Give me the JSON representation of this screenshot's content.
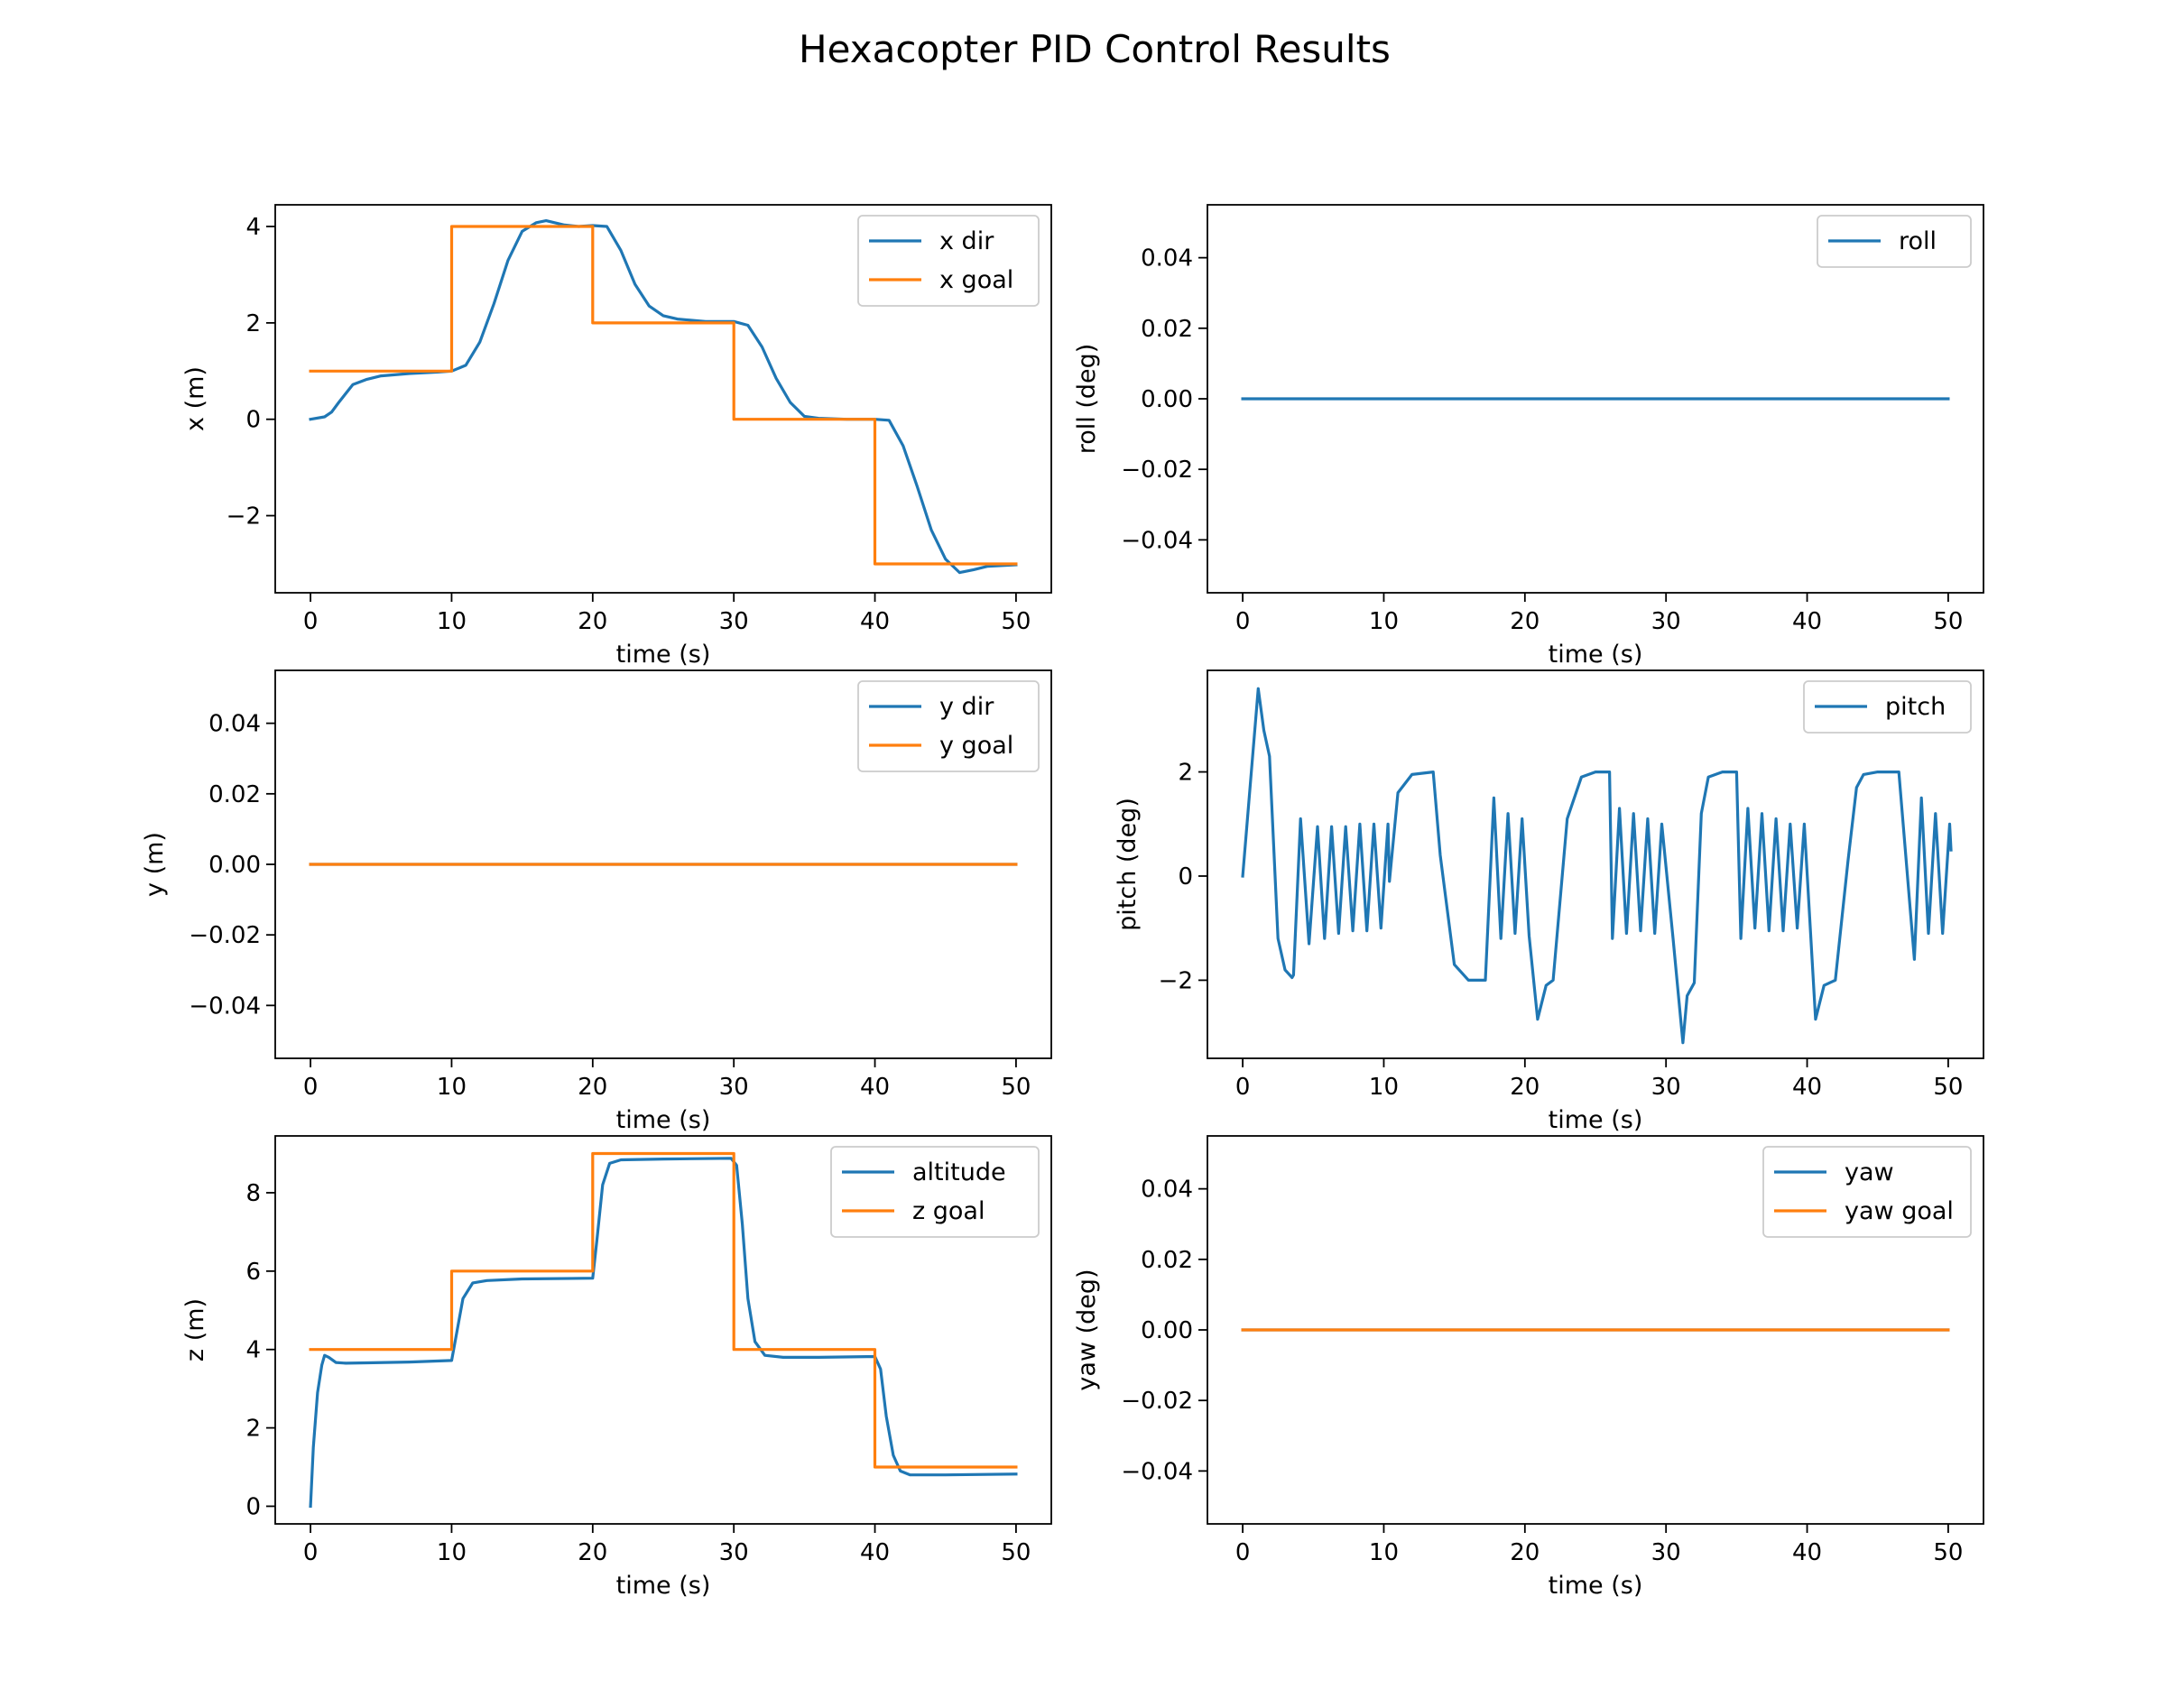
{
  "figure": {
    "title": "Hexacopter PID Control Results"
  },
  "chart_data": [
    {
      "type": "line",
      "xlabel": "time (s)",
      "ylabel": "x (m)",
      "xlim": [
        -2.5,
        52.5
      ],
      "ylim": [
        -3.6,
        4.45
      ],
      "xticks": [
        0,
        10,
        20,
        30,
        40,
        50
      ],
      "yticks": [
        -2,
        0,
        2,
        4
      ],
      "legend": "top-right",
      "series": [
        {
          "name": "x dir",
          "color": "#1f77b4",
          "x": [
            0,
            1,
            1.5,
            2,
            3,
            4,
            5,
            7,
            9,
            10,
            11,
            12,
            13,
            14,
            15,
            16,
            16.7,
            18,
            19,
            20,
            21,
            22,
            23,
            24,
            25,
            26,
            28,
            30,
            31,
            32,
            33,
            34,
            35,
            36,
            38,
            40,
            41,
            42,
            43,
            44,
            45,
            46,
            47,
            48,
            50
          ],
          "y": [
            0,
            0.05,
            0.15,
            0.35,
            0.72,
            0.83,
            0.9,
            0.95,
            0.98,
            1.0,
            1.12,
            1.6,
            2.4,
            3.3,
            3.9,
            4.08,
            4.12,
            4.03,
            4.0,
            4.02,
            4.0,
            3.5,
            2.8,
            2.35,
            2.15,
            2.08,
            2.03,
            2.03,
            1.95,
            1.5,
            0.85,
            0.35,
            0.06,
            0.02,
            0.0,
            0.0,
            -0.02,
            -0.55,
            -1.4,
            -2.3,
            -2.9,
            -3.18,
            -3.12,
            -3.05,
            -3.02
          ]
        },
        {
          "name": "x goal",
          "color": "#ff7f0e",
          "x": [
            0,
            10,
            10,
            20,
            20,
            30,
            30,
            40,
            40,
            50
          ],
          "y": [
            1,
            1,
            4,
            4,
            2,
            2,
            0,
            0,
            -3,
            -3
          ]
        }
      ]
    },
    {
      "type": "line",
      "xlabel": "time (s)",
      "ylabel": "roll (deg)",
      "xlim": [
        -2.5,
        52.5
      ],
      "ylim": [
        -0.055,
        0.055
      ],
      "xticks": [
        0,
        10,
        20,
        30,
        40,
        50
      ],
      "yticks": [
        -0.04,
        -0.02,
        0.0,
        0.02,
        0.04
      ],
      "legend": "top-right",
      "series": [
        {
          "name": "roll",
          "color": "#1f77b4",
          "x": [
            0,
            50
          ],
          "y": [
            0,
            0
          ]
        }
      ]
    },
    {
      "type": "line",
      "xlabel": "time (s)",
      "ylabel": "y (m)",
      "xlim": [
        -2.5,
        52.5
      ],
      "ylim": [
        -0.055,
        0.055
      ],
      "xticks": [
        0,
        10,
        20,
        30,
        40,
        50
      ],
      "yticks": [
        -0.04,
        -0.02,
        0.0,
        0.02,
        0.04
      ],
      "legend": "top-right",
      "series": [
        {
          "name": "y dir",
          "color": "#1f77b4",
          "x": [
            0,
            50
          ],
          "y": [
            0,
            0
          ]
        },
        {
          "name": "y goal",
          "color": "#ff7f0e",
          "x": [
            0,
            50
          ],
          "y": [
            0,
            0
          ]
        }
      ]
    },
    {
      "type": "line",
      "xlabel": "time (s)",
      "ylabel": "pitch (deg)",
      "xlim": [
        -2.5,
        52.5
      ],
      "ylim": [
        -3.5,
        3.95
      ],
      "xticks": [
        0,
        10,
        20,
        30,
        40,
        50
      ],
      "yticks": [
        -2,
        0,
        2
      ],
      "legend": "top-right",
      "series": [
        {
          "name": "pitch",
          "color": "#1f77b4",
          "x": [
            0,
            1.1,
            1.5,
            1.9,
            2.5,
            3,
            3.5,
            3.6,
            4.1,
            4.7,
            5.3,
            5.8,
            6.3,
            6.8,
            7.3,
            7.8,
            8.3,
            8.8,
            9.3,
            9.8,
            10.3,
            10.4,
            11,
            12,
            13.5,
            14,
            15,
            16,
            17.2,
            17.8,
            18.3,
            18.8,
            19.3,
            19.8,
            20.3,
            20.9,
            21.5,
            22,
            23,
            24,
            25,
            26,
            26.2,
            26.7,
            27.2,
            27.7,
            28.2,
            28.7,
            29.2,
            29.7,
            30.5,
            31.2,
            31.5,
            32,
            32.5,
            33,
            34,
            35,
            35.3,
            35.8,
            36.3,
            36.8,
            37.3,
            37.8,
            38.3,
            38.8,
            39.3,
            39.8,
            40.6,
            41.2,
            42,
            42.9,
            43.5,
            44,
            45,
            46.5,
            47.6,
            48.1,
            48.6,
            49.1,
            49.6,
            50.1,
            50.2
          ],
          "y": [
            0,
            3.6,
            2.8,
            2.3,
            -1.2,
            -1.8,
            -1.95,
            -1.9,
            1.1,
            -1.3,
            0.95,
            -1.2,
            0.95,
            -1.1,
            0.95,
            -1.05,
            1.0,
            -1.05,
            1.0,
            -1.0,
            1.0,
            -0.1,
            1.6,
            1.95,
            2.0,
            0.4,
            -1.7,
            -2.0,
            -2.0,
            1.5,
            -1.2,
            1.2,
            -1.1,
            1.1,
            -1.15,
            -2.75,
            -2.1,
            -2.0,
            1.1,
            1.9,
            2.0,
            2.0,
            -1.2,
            1.3,
            -1.1,
            1.2,
            -1.05,
            1.1,
            -1.1,
            1.0,
            -1.2,
            -3.2,
            -2.3,
            -2.05,
            1.2,
            1.9,
            2.0,
            2.0,
            -1.2,
            1.3,
            -1.0,
            1.2,
            -1.05,
            1.1,
            -1.05,
            1.0,
            -1.0,
            1.0,
            -2.75,
            -2.1,
            -2.0,
            0.3,
            1.7,
            1.95,
            2.0,
            2.0,
            -1.6,
            1.5,
            -1.1,
            1.2,
            -1.1,
            1.0,
            0.5
          ]
        }
      ]
    },
    {
      "type": "line",
      "xlabel": "time (s)",
      "ylabel": "z (m)",
      "xlim": [
        -2.5,
        52.5
      ],
      "ylim": [
        -0.45,
        9.45
      ],
      "xticks": [
        0,
        10,
        20,
        30,
        40,
        50
      ],
      "yticks": [
        0,
        2,
        4,
        6,
        8
      ],
      "legend": "top-right",
      "series": [
        {
          "name": "altitude",
          "color": "#1f77b4",
          "x": [
            0,
            0.2,
            0.5,
            0.8,
            1.0,
            1.3,
            1.8,
            2.5,
            4,
            7,
            10,
            10.3,
            10.8,
            11.5,
            12.5,
            15,
            20,
            20.3,
            20.7,
            21.2,
            22,
            25,
            29.8,
            30.2,
            30.6,
            31.0,
            31.5,
            32.2,
            33.5,
            36,
            40,
            40.4,
            40.8,
            41.3,
            41.8,
            42.5,
            45,
            50
          ],
          "y": [
            0,
            1.5,
            2.9,
            3.6,
            3.85,
            3.8,
            3.67,
            3.65,
            3.66,
            3.68,
            3.72,
            4.3,
            5.3,
            5.7,
            5.76,
            5.8,
            5.82,
            6.8,
            8.2,
            8.75,
            8.84,
            8.86,
            8.88,
            8.7,
            7.2,
            5.3,
            4.2,
            3.85,
            3.8,
            3.8,
            3.82,
            3.5,
            2.3,
            1.3,
            0.9,
            0.8,
            0.8,
            0.82
          ]
        },
        {
          "name": "z goal",
          "color": "#ff7f0e",
          "x": [
            0,
            10,
            10,
            20,
            20,
            30,
            30,
            40,
            40,
            50
          ],
          "y": [
            4,
            4,
            6,
            6,
            9,
            9,
            4,
            4,
            1,
            1
          ]
        }
      ]
    },
    {
      "type": "line",
      "xlabel": "time (s)",
      "ylabel": "yaw (deg)",
      "xlim": [
        -2.5,
        52.5
      ],
      "ylim": [
        -0.055,
        0.055
      ],
      "xticks": [
        0,
        10,
        20,
        30,
        40,
        50
      ],
      "yticks": [
        -0.04,
        -0.02,
        0.0,
        0.02,
        0.04
      ],
      "legend": "top-right",
      "series": [
        {
          "name": "yaw",
          "color": "#1f77b4",
          "x": [
            0,
            50
          ],
          "y": [
            0,
            0
          ]
        },
        {
          "name": "yaw goal",
          "color": "#ff7f0e",
          "x": [
            0,
            50
          ],
          "y": [
            0,
            0
          ]
        }
      ]
    }
  ]
}
